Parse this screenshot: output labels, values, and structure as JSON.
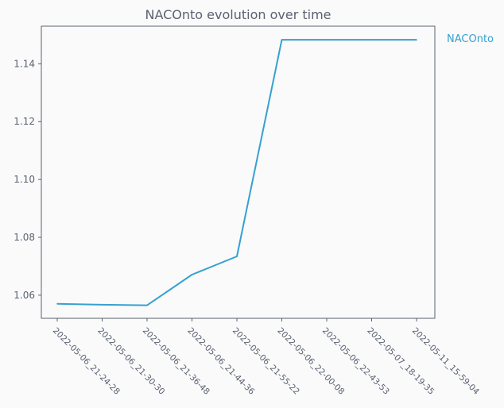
{
  "chart_data": {
    "type": "line",
    "title": "NACOnto evolution over time",
    "xlabel": "",
    "ylabel": "",
    "categories": [
      "2022-05-06_21-24-28",
      "2022-05-06_21-30-30",
      "2022-05-06_21-36-48",
      "2022-05-06_21-44-36",
      "2022-05-06_21-55-22",
      "2022-05-06_22-00-08",
      "2022-05-06_22-43-53",
      "2022-05-07_18-19-35",
      "2022-05-11_15-59-04"
    ],
    "series": [
      {
        "name": "NACOnto",
        "color": "#35a1d1",
        "values": [
          1.057,
          1.0567,
          1.0565,
          1.0671,
          1.0734,
          1.1483,
          1.1483,
          1.1483,
          1.1483
        ]
      }
    ],
    "ylim": [
      1.052,
      1.153
    ],
    "yticks": [
      1.06,
      1.08,
      1.1,
      1.12,
      1.14
    ],
    "ytick_labels": [
      "1.06",
      "1.08",
      "1.10",
      "1.12",
      "1.14"
    ],
    "grid": false,
    "legend": "right"
  }
}
